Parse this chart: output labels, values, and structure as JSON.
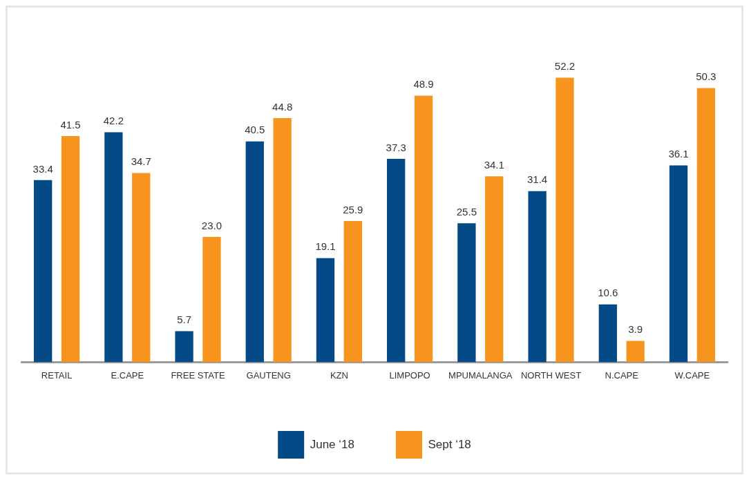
{
  "chart_data": {
    "type": "bar",
    "categories": [
      "RETAIL",
      "E.CAPE",
      "FREE STATE",
      "GAUTENG",
      "KZN",
      "LIMPOPO",
      "MPUMALANGA",
      "NORTH WEST",
      "N.CAPE",
      "W.CAPE"
    ],
    "series": [
      {
        "name": "June ‘18",
        "color": "#044a87",
        "values": [
          33.4,
          42.2,
          5.7,
          40.5,
          19.1,
          37.3,
          25.5,
          31.4,
          10.6,
          36.1
        ],
        "value_labels": [
          "33.4",
          "42.2",
          "5.7",
          "40.5",
          "19.1",
          "37.3",
          "25.5",
          "31.4",
          "10.6",
          "36.1"
        ]
      },
      {
        "name": "Sept ‘18",
        "color": "#f7941d",
        "values": [
          41.5,
          34.7,
          23.0,
          44.8,
          25.9,
          48.9,
          34.1,
          52.2,
          3.9,
          50.3
        ],
        "value_labels": [
          "41.5",
          "34.7",
          "23.0",
          "44.8",
          "25.9",
          "48.9",
          "34.1",
          "52.2",
          "3.9",
          "50.3"
        ]
      }
    ],
    "legend": "bottom",
    "grid": false,
    "tick_labels": "x"
  }
}
